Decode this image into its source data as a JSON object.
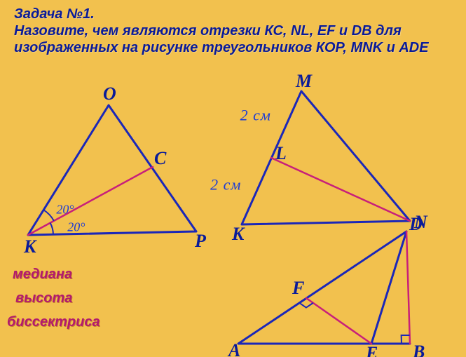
{
  "colors": {
    "background": "#f2c14e",
    "title_color": "#0a1b99",
    "term_color": "#b21a6e",
    "line_main": "#1b27b8",
    "line_accent": "#c81f7a",
    "vertex_label": "#0a1b99",
    "angle_label": "#1b3bd6"
  },
  "title": {
    "line1": "Задача №1.",
    "rest": "Назовите, чем являются отрезки КС, NL, EF и DB для изображенных на рисунке треугольников КОР, MNK и ADE"
  },
  "terms": {
    "median": "медиана",
    "height": "высота",
    "bisector": "биссектриса"
  },
  "triangles": {
    "KOP": {
      "type": "triangle-with-bisector",
      "vertices": {
        "K": [
          40,
          335
        ],
        "O": [
          155,
          150
        ],
        "P": [
          280,
          330
        ]
      },
      "C": [
        218,
        238
      ],
      "labels": {
        "K": "К",
        "O": "О",
        "P": "Р",
        "C": "С"
      },
      "angle_halves": [
        "20°",
        "20°"
      ]
    },
    "MNK": {
      "type": "triangle-with-median",
      "vertices": {
        "M": [
          430,
          130
        ],
        "N": [
          585,
          315
        ],
        "K": [
          345,
          320
        ]
      },
      "L": [
        387,
        225
      ],
      "labels": {
        "M": "M",
        "N": "N",
        "K": "K",
        "L": "L"
      },
      "side_halves": [
        "2 см",
        "2 см"
      ]
    },
    "ADE": {
      "type": "triangle-with-altitudes",
      "vertices": {
        "A": [
          340,
          490
        ],
        "D": [
          580,
          330
        ],
        "E": [
          530,
          490
        ]
      },
      "B": [
        585,
        490
      ],
      "F_foot": [
        437,
        425
      ],
      "labels": {
        "A": "A",
        "D": "D",
        "E": "E",
        "B": "B",
        "F": "F"
      }
    }
  },
  "style": {
    "line_width": 3,
    "accent_width": 2.5,
    "vertex_fontsize": 26,
    "angle_fontsize": 18
  }
}
